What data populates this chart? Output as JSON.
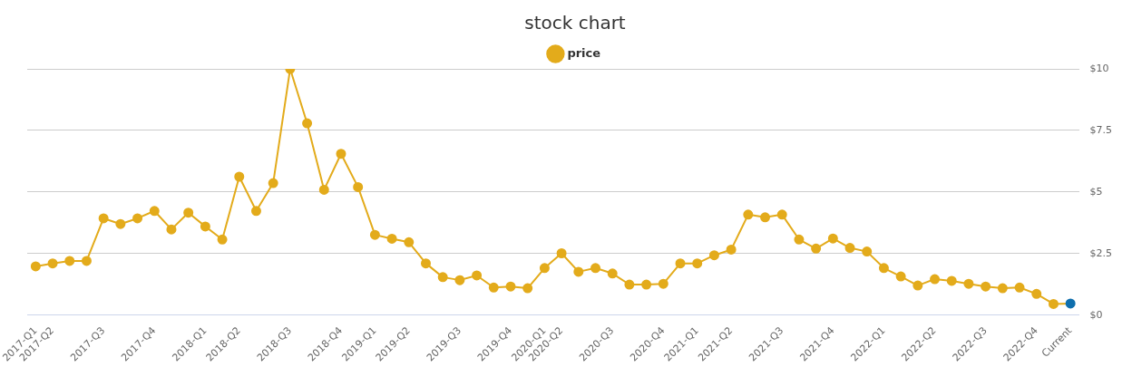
{
  "chart_data": {
    "type": "line",
    "title": "stock chart",
    "categories": [
      "2017-Q1",
      "2017-Q2",
      null,
      null,
      "2017-Q3",
      null,
      null,
      "2017-Q4",
      null,
      null,
      "2018-Q1",
      null,
      "2018-Q2",
      null,
      null,
      "2018-Q3",
      null,
      null,
      "2018-Q4",
      null,
      "2019-Q1",
      null,
      "2019-Q2",
      null,
      null,
      "2019-Q3",
      null,
      null,
      "2019-Q4",
      null,
      "2020-Q1",
      "2020-Q2",
      null,
      null,
      "2020-Q3",
      null,
      null,
      "2020-Q4",
      null,
      "2021-Q1",
      null,
      "2021-Q2",
      null,
      null,
      "2021-Q3",
      null,
      null,
      "2021-Q4",
      null,
      null,
      "2022-Q1",
      null,
      null,
      "2022-Q2",
      null,
      null,
      "2022-Q3",
      null,
      null,
      "2022-Q4",
      null,
      "Current"
    ],
    "series": [
      {
        "name": "price",
        "color": "#e3ab1b",
        "colors": [
          "#e3ab1b",
          "#e3ab1b",
          "#e3ab1b",
          "#e3ab1b",
          "#e3ab1b",
          "#e3ab1b",
          "#e3ab1b",
          "#e3ab1b",
          "#e3ab1b",
          "#e3ab1b",
          "#e3ab1b",
          "#e3ab1b",
          "#e3ab1b",
          "#e3ab1b",
          "#e3ab1b",
          "#e3ab1b",
          "#e3ab1b",
          "#e3ab1b",
          "#e3ab1b",
          "#e3ab1b",
          "#e3ab1b",
          "#e3ab1b",
          "#e3ab1b",
          "#e3ab1b",
          "#e3ab1b",
          "#e3ab1b",
          "#e3ab1b",
          "#e3ab1b",
          "#e3ab1b",
          "#e3ab1b",
          "#e3ab1b",
          "#e3ab1b",
          "#e3ab1b",
          "#e3ab1b",
          "#e3ab1b",
          "#e3ab1b",
          "#e3ab1b",
          "#e3ab1b",
          "#e3ab1b",
          "#e3ab1b",
          "#e3ab1b",
          "#e3ab1b",
          "#e3ab1b",
          "#e3ab1b",
          "#e3ab1b",
          "#e3ab1b",
          "#e3ab1b",
          "#e3ab1b",
          "#e3ab1b",
          "#e3ab1b",
          "#e3ab1b",
          "#e3ab1b",
          "#e3ab1b",
          "#e3ab1b",
          "#e3ab1b",
          "#e3ab1b",
          "#e3ab1b",
          "#e3ab1b",
          "#e3ab1b",
          "#e3ab1b",
          "#e3ab1b",
          "#0f6fad"
        ],
        "values": [
          1.98,
          2.1,
          2.2,
          2.2,
          3.93,
          3.7,
          3.93,
          4.23,
          3.48,
          4.16,
          3.6,
          3.07,
          5.62,
          4.23,
          5.36,
          10.0,
          7.79,
          5.09,
          6.55,
          5.2,
          3.26,
          3.1,
          2.96,
          2.1,
          1.54,
          1.42,
          1.61,
          1.12,
          1.16,
          1.09,
          1.91,
          2.51,
          1.76,
          1.91,
          1.69,
          1.24,
          1.24,
          1.27,
          2.1,
          2.1,
          2.43,
          2.66,
          4.08,
          3.97,
          4.08,
          3.07,
          2.7,
          3.11,
          2.73,
          2.58,
          1.91,
          1.57,
          1.2,
          1.46,
          1.39,
          1.27,
          1.16,
          1.09,
          1.12,
          0.86,
          0.45,
          0.47
        ]
      }
    ],
    "ylim": [
      0,
      10
    ],
    "yticks": [
      {
        "value": 0,
        "label": "$0"
      },
      {
        "value": 2.5,
        "label": "$2.5"
      },
      {
        "value": 5,
        "label": "$5"
      },
      {
        "value": 7.5,
        "label": "$7.5"
      },
      {
        "value": 10,
        "label": "$10"
      }
    ],
    "grid": "y",
    "legend": "top",
    "marker": "circle",
    "line_style": "solid"
  }
}
